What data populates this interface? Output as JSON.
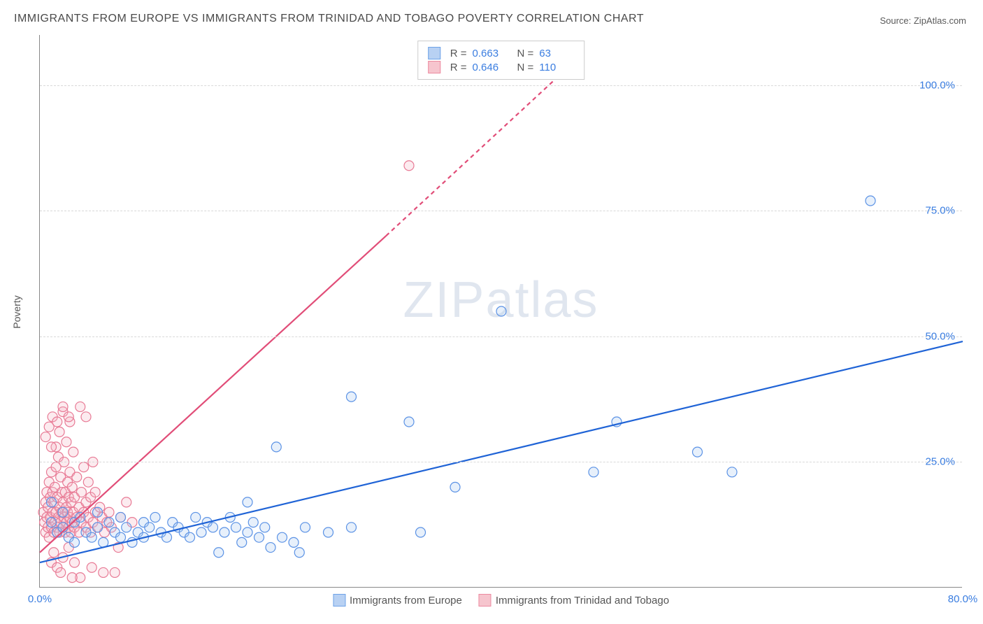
{
  "title": "IMMIGRANTS FROM EUROPE VS IMMIGRANTS FROM TRINIDAD AND TOBAGO POVERTY CORRELATION CHART",
  "source": "Source: ZipAtlas.com",
  "watermark": {
    "part1": "ZIP",
    "part2": "atlas"
  },
  "ylabel": "Poverty",
  "chart": {
    "type": "scatter",
    "background_color": "#ffffff",
    "grid_color": "#d8d8d8",
    "axis_color": "#888888",
    "ytick_label_color": "#3a7de0",
    "xlim": [
      0,
      80
    ],
    "ylim": [
      0,
      110
    ],
    "yticks": [
      25.0,
      50.0,
      75.0,
      100.0
    ],
    "ytick_labels": [
      "25.0%",
      "50.0%",
      "75.0%",
      "100.0%"
    ],
    "xticks": [
      0,
      80
    ],
    "xtick_labels": [
      "0.0%",
      "80.0%"
    ],
    "marker_radius": 7,
    "marker_stroke_width": 1.2,
    "marker_fill_opacity": 0.28,
    "trend_line_width": 2.2,
    "trend_dash_pattern": "6,5"
  },
  "legend_top": {
    "r_label": "R =",
    "n_label": "N =",
    "rows": [
      {
        "swatch_fill": "#b8d1f3",
        "swatch_stroke": "#6ea2e8",
        "r": "0.663",
        "n": "63"
      },
      {
        "swatch_fill": "#f6c5ce",
        "swatch_stroke": "#ec8aa0",
        "r": "0.646",
        "n": "110"
      }
    ]
  },
  "legend_bottom": {
    "items": [
      {
        "swatch_fill": "#b8d1f3",
        "swatch_stroke": "#6ea2e8",
        "label": "Immigrants from Europe"
      },
      {
        "swatch_fill": "#f6c5ce",
        "swatch_stroke": "#ec8aa0",
        "label": "Immigrants from Trinidad and Tobago"
      }
    ]
  },
  "series": [
    {
      "name": "Immigrants from Europe",
      "color_stroke": "#5b92e5",
      "color_fill": "#a8c8f0",
      "trend_color": "#1f63d6",
      "trend": {
        "x1": 0,
        "y1": 5,
        "x2": 80,
        "y2": 49
      },
      "points": [
        [
          1,
          17
        ],
        [
          1,
          13
        ],
        [
          1.5,
          11
        ],
        [
          2,
          15
        ],
        [
          2,
          12
        ],
        [
          2.5,
          10
        ],
        [
          3,
          13
        ],
        [
          3,
          9
        ],
        [
          3.5,
          14
        ],
        [
          4,
          11
        ],
        [
          4.5,
          10
        ],
        [
          5,
          12
        ],
        [
          5,
          15
        ],
        [
          5.5,
          9
        ],
        [
          6,
          13
        ],
        [
          6.5,
          11
        ],
        [
          7,
          10
        ],
        [
          7,
          14
        ],
        [
          7.5,
          12
        ],
        [
          8,
          9
        ],
        [
          8.5,
          11
        ],
        [
          9,
          13
        ],
        [
          9,
          10
        ],
        [
          9.5,
          12
        ],
        [
          10,
          14
        ],
        [
          10.5,
          11
        ],
        [
          11,
          10
        ],
        [
          11.5,
          13
        ],
        [
          12,
          12
        ],
        [
          12.5,
          11
        ],
        [
          13,
          10
        ],
        [
          13.5,
          14
        ],
        [
          14,
          11
        ],
        [
          14.5,
          13
        ],
        [
          15,
          12
        ],
        [
          15.5,
          7
        ],
        [
          16,
          11
        ],
        [
          16.5,
          14
        ],
        [
          17,
          12
        ],
        [
          17.5,
          9
        ],
        [
          18,
          11
        ],
        [
          18.5,
          13
        ],
        [
          19,
          10
        ],
        [
          19.5,
          12
        ],
        [
          20,
          8
        ],
        [
          20.5,
          28
        ],
        [
          21,
          10
        ],
        [
          22,
          9
        ],
        [
          22.5,
          7
        ],
        [
          23,
          12
        ],
        [
          25,
          11
        ],
        [
          27,
          38
        ],
        [
          32,
          33
        ],
        [
          33,
          11
        ],
        [
          36,
          20
        ],
        [
          40,
          55
        ],
        [
          48,
          23
        ],
        [
          50,
          33
        ],
        [
          57,
          27
        ],
        [
          60,
          23
        ],
        [
          72,
          77
        ],
        [
          27,
          12
        ],
        [
          18,
          17
        ]
      ]
    },
    {
      "name": "Immigrants from Trinidad and Tobago",
      "color_stroke": "#e87a95",
      "color_fill": "#f5b8c7",
      "trend_color": "#e14d78",
      "trend_solid": {
        "x1": 0,
        "y1": 7,
        "x2": 30,
        "y2": 70
      },
      "trend_dash": {
        "x1": 30,
        "y1": 70,
        "x2": 46,
        "y2": 104
      },
      "points": [
        [
          0.3,
          15
        ],
        [
          0.4,
          13
        ],
        [
          0.5,
          17
        ],
        [
          0.5,
          11
        ],
        [
          0.6,
          14
        ],
        [
          0.6,
          19
        ],
        [
          0.7,
          12
        ],
        [
          0.7,
          16
        ],
        [
          0.8,
          10
        ],
        [
          0.8,
          21
        ],
        [
          0.9,
          14
        ],
        [
          0.9,
          18
        ],
        [
          1.0,
          12
        ],
        [
          1.0,
          23
        ],
        [
          1.1,
          15
        ],
        [
          1.1,
          19
        ],
        [
          1.2,
          11
        ],
        [
          1.2,
          17
        ],
        [
          1.3,
          13
        ],
        [
          1.3,
          20
        ],
        [
          1.4,
          15
        ],
        [
          1.4,
          24
        ],
        [
          1.5,
          12
        ],
        [
          1.5,
          18
        ],
        [
          1.6,
          14
        ],
        [
          1.6,
          26
        ],
        [
          1.7,
          11
        ],
        [
          1.7,
          16
        ],
        [
          1.8,
          13
        ],
        [
          1.8,
          22
        ],
        [
          1.9,
          15
        ],
        [
          1.9,
          19
        ],
        [
          2.0,
          12
        ],
        [
          2.0,
          17
        ],
        [
          2.1,
          14
        ],
        [
          2.1,
          25
        ],
        [
          2.2,
          11
        ],
        [
          2.2,
          19
        ],
        [
          2.3,
          13
        ],
        [
          2.3,
          16
        ],
        [
          2.4,
          15
        ],
        [
          2.4,
          21
        ],
        [
          2.5,
          12
        ],
        [
          2.5,
          18
        ],
        [
          2.6,
          14
        ],
        [
          2.6,
          23
        ],
        [
          2.7,
          11
        ],
        [
          2.7,
          17
        ],
        [
          2.8,
          13
        ],
        [
          2.8,
          20
        ],
        [
          2.9,
          15
        ],
        [
          2.9,
          27
        ],
        [
          3.0,
          12
        ],
        [
          3.0,
          18
        ],
        [
          3.2,
          14
        ],
        [
          3.2,
          22
        ],
        [
          3.4,
          11
        ],
        [
          3.4,
          16
        ],
        [
          3.6,
          13
        ],
        [
          3.6,
          19
        ],
        [
          3.8,
          15
        ],
        [
          3.8,
          24
        ],
        [
          4.0,
          12
        ],
        [
          4.0,
          17
        ],
        [
          4.2,
          14
        ],
        [
          4.2,
          21
        ],
        [
          4.4,
          11
        ],
        [
          4.4,
          18
        ],
        [
          4.6,
          13
        ],
        [
          4.6,
          25
        ],
        [
          4.8,
          15
        ],
        [
          4.8,
          19
        ],
        [
          5.0,
          12
        ],
        [
          5.2,
          16
        ],
        [
          5.4,
          14
        ],
        [
          5.6,
          11
        ],
        [
          5.8,
          13
        ],
        [
          6.0,
          15
        ],
        [
          6.2,
          12
        ],
        [
          6.5,
          3
        ],
        [
          6.8,
          8
        ],
        [
          7.0,
          14
        ],
        [
          7.5,
          17
        ],
        [
          8.0,
          13
        ],
        [
          1.0,
          5
        ],
        [
          1.2,
          7
        ],
        [
          1.5,
          4
        ],
        [
          2.0,
          6
        ],
        [
          2.5,
          8
        ],
        [
          3.0,
          5
        ],
        [
          0.5,
          30
        ],
        [
          0.8,
          32
        ],
        [
          1.1,
          34
        ],
        [
          1.4,
          28
        ],
        [
          1.7,
          31
        ],
        [
          2.0,
          35
        ],
        [
          2.3,
          29
        ],
        [
          2.6,
          33
        ],
        [
          2.0,
          36
        ],
        [
          2.5,
          34
        ],
        [
          3.5,
          36
        ],
        [
          4.0,
          34
        ],
        [
          1.5,
          33
        ],
        [
          1.0,
          28
        ],
        [
          32,
          84
        ],
        [
          3.5,
          2
        ],
        [
          4.5,
          4
        ],
        [
          5.5,
          3
        ],
        [
          2.8,
          2
        ],
        [
          1.8,
          3
        ]
      ]
    }
  ]
}
